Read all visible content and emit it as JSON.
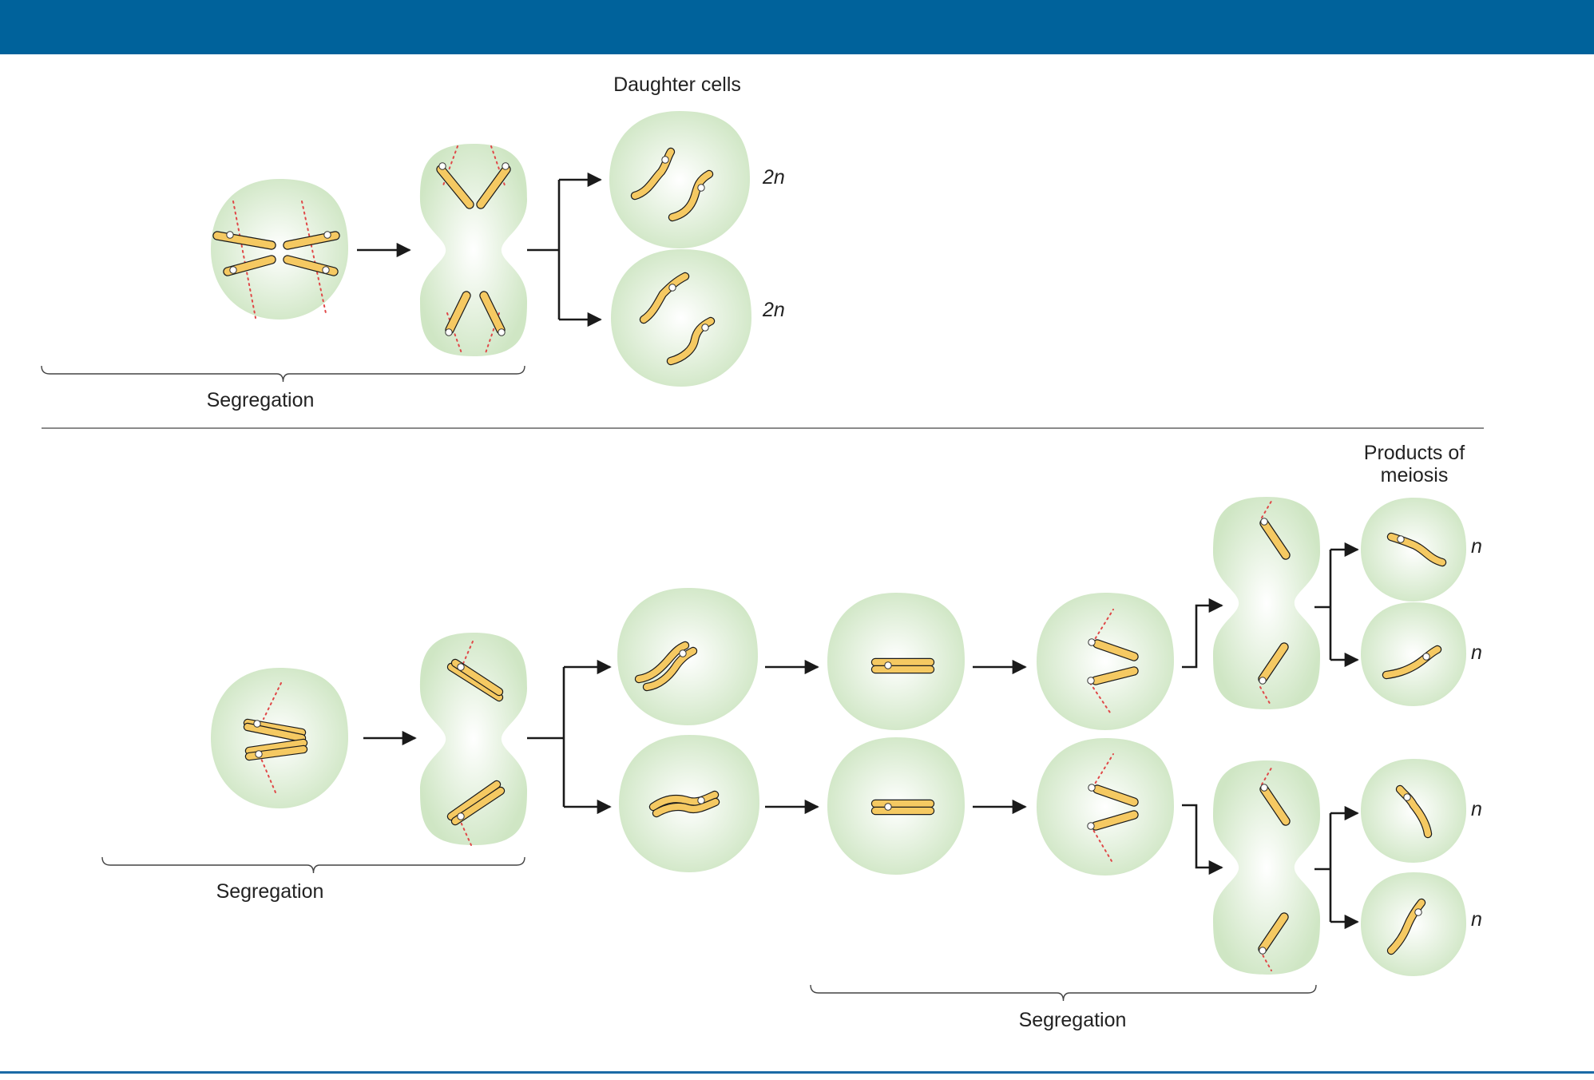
{
  "colors": {
    "header_bar": "#00629b",
    "bottom_rule": "#1b6aa6",
    "cell_fill_center": "#ffffff",
    "cell_fill_edge": "#cfe6c4",
    "chromosome_fill": "#f5c962",
    "chromosome_stroke": "#1a1a1a",
    "spindle_line": "#e04848",
    "arrow": "#1a1a1a"
  },
  "mitosis": {
    "daughter_cells_label": "Daughter cells",
    "ploidy_top": "2n",
    "ploidy_bottom": "2n",
    "segregation_label": "Segregation"
  },
  "meiosis": {
    "products_label_line1": "Products of",
    "products_label_line2": "meiosis",
    "ploidy_labels": [
      "n",
      "n",
      "n",
      "n"
    ],
    "segregation_label_first": "Segregation",
    "segregation_label_second": "Segregation"
  },
  "icons": {
    "cell": "round-cell-icon",
    "dividing_cell": "dividing-cell-icon",
    "chromosome": "chromosome-icon",
    "arrow": "arrow-right-icon"
  }
}
